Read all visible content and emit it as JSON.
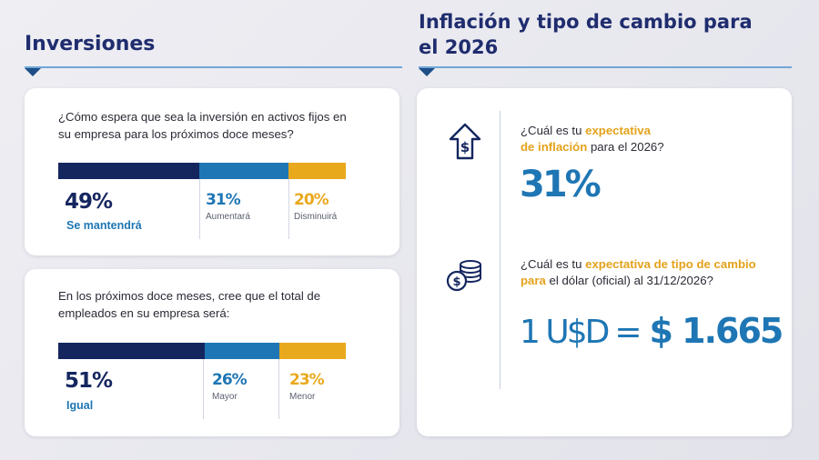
{
  "headings": {
    "left": "Inversiones",
    "right": "Inflación y tipo de cambio para el 2026"
  },
  "colors": {
    "navy": "#15265f",
    "blue": "#1e76b4",
    "gold": "#e9a91d"
  },
  "icons": [
    "house-dollar-arrow-icon",
    "coin-stack-dollar-icon"
  ],
  "investment_card": {
    "question": "¿Cómo espera que sea la inversión en activos fijos en su empresa para los próximos doce meses?"
  },
  "employment_card": {
    "question": "En los próximos doce meses, cree que el total de empleados en su empresa será:"
  },
  "chart_data": [
    {
      "type": "bar",
      "orientation": "stacked-horizontal",
      "categories": [
        "Se mantendrá",
        "Aumentará",
        "Disminuirá"
      ],
      "values": [
        49,
        31,
        20
      ],
      "labels": [
        "49%",
        "31%",
        "20%"
      ],
      "colors": [
        "#15265f",
        "#1e76b4",
        "#e9a91d"
      ]
    },
    {
      "type": "bar",
      "orientation": "stacked-horizontal",
      "categories": [
        "Igual",
        "Mayor",
        "Menor"
      ],
      "values": [
        51,
        26,
        23
      ],
      "labels": [
        "51%",
        "26%",
        "23%"
      ],
      "colors": [
        "#15265f",
        "#1e76b4",
        "#e9a91d"
      ]
    }
  ],
  "inflation": {
    "q_pre": "¿Cuál es tu ",
    "q_hl1": "expectativa",
    "q_hl2": "de inflación",
    "q_post": " para el 2026?",
    "value": "31%"
  },
  "exchange": {
    "q_pre": "¿Cuál es tu ",
    "q_hl": "expectativa de tipo de cambio para",
    "q_post": " el dólar (oficial) al 31/12/2026?",
    "lhs": "1 U$D",
    "eq": "=",
    "rhs": "$ 1.665"
  }
}
